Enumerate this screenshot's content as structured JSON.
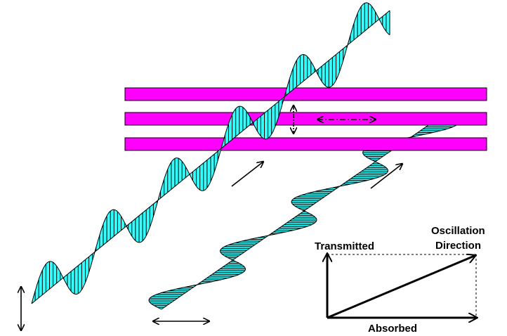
{
  "labels": {
    "transmitted": "Transmitted",
    "oscillation": "Oscillation",
    "direction": "Direction",
    "absorbed": "Absorbed"
  }
}
